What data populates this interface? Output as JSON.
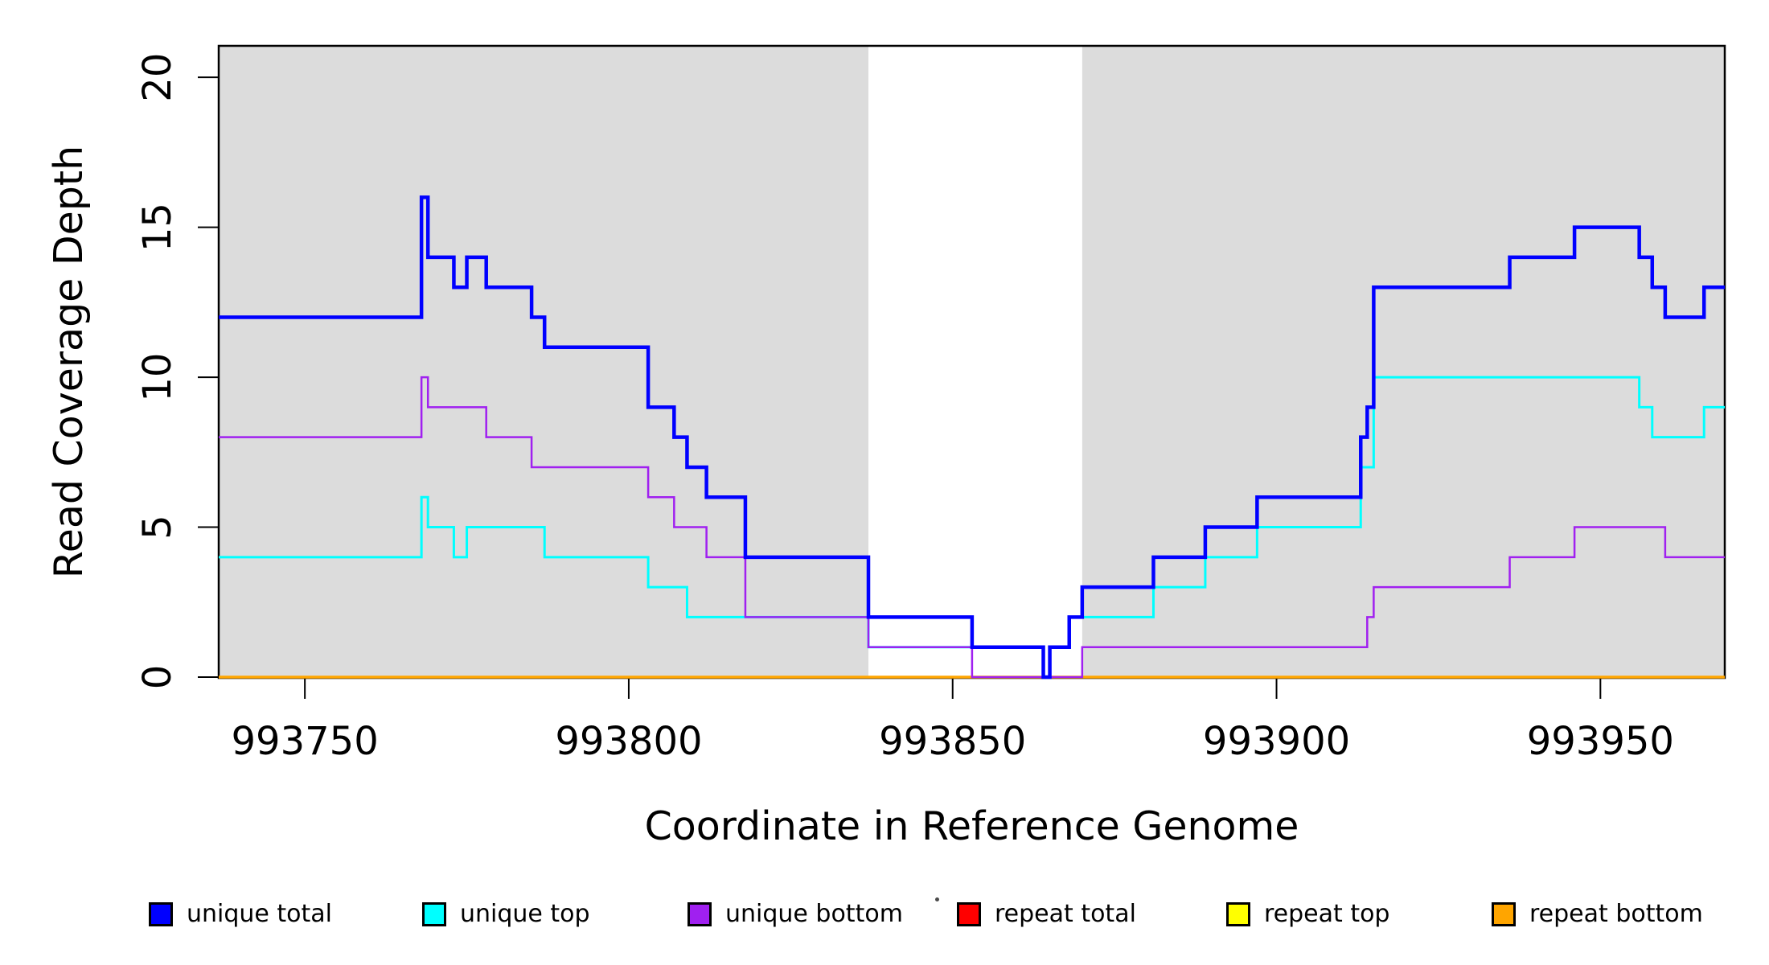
{
  "chart_data": {
    "type": "line",
    "subtype": "step-after-coverage-plot",
    "title": "",
    "xlabel": "Coordinate in Reference Genome",
    "ylabel": "Read Coverage Depth",
    "x_ticks": [
      993750,
      993800,
      993850,
      993900,
      993950
    ],
    "y_ticks": [
      0,
      5,
      10,
      15,
      20
    ],
    "x_range": [
      993736.7,
      993969.2
    ],
    "y_range": [
      0,
      21.05
    ],
    "grid": false,
    "legend_position": "bottom",
    "plot_bg": "#ffffff",
    "band_color": "#dcdcdc",
    "axis_color": "#000000",
    "shaded_regions": [
      {
        "name": "unique-region-left",
        "from": 993736.7,
        "to": 993837
      },
      {
        "name": "unique-region-right",
        "from": 993870,
        "to": 993969.2
      }
    ],
    "series": [
      {
        "name": "repeat total",
        "color": "#ff0000",
        "points": [
          [
            993737,
            0
          ]
        ]
      },
      {
        "name": "repeat top",
        "color": "#ffff00",
        "points": [
          [
            993737,
            0
          ]
        ]
      },
      {
        "name": "repeat bottom",
        "color": "#ffa500",
        "points": [
          [
            993737,
            0
          ]
        ]
      },
      {
        "name": "unique top",
        "color": "#00ffff",
        "points": [
          [
            993737,
            4
          ],
          [
            993768,
            6
          ],
          [
            993769,
            5
          ],
          [
            993773,
            4
          ],
          [
            993775,
            5
          ],
          [
            993787,
            4
          ],
          [
            993803,
            3
          ],
          [
            993809,
            2
          ],
          [
            993837,
            1
          ],
          [
            993864,
            0
          ],
          [
            993865,
            1
          ],
          [
            993868,
            2
          ],
          [
            993881,
            3
          ],
          [
            993889,
            4
          ],
          [
            993897,
            5
          ],
          [
            993913,
            7
          ],
          [
            993915,
            10
          ],
          [
            993956,
            9
          ],
          [
            993958,
            8
          ],
          [
            993966,
            9
          ]
        ]
      },
      {
        "name": "unique bottom",
        "color": "#a020f0",
        "points": [
          [
            993737,
            8
          ],
          [
            993768,
            10
          ],
          [
            993769,
            9
          ],
          [
            993778,
            8
          ],
          [
            993785,
            7
          ],
          [
            993803,
            6
          ],
          [
            993807,
            5
          ],
          [
            993812,
            4
          ],
          [
            993818,
            2
          ],
          [
            993837,
            1
          ],
          [
            993853,
            0
          ],
          [
            993870,
            1
          ],
          [
            993914,
            2
          ],
          [
            993915,
            3
          ],
          [
            993936,
            4
          ],
          [
            993946,
            5
          ],
          [
            993960,
            4
          ]
        ]
      },
      {
        "name": "unique total",
        "color": "#0000ff",
        "points": [
          [
            993737,
            12
          ],
          [
            993768,
            16
          ],
          [
            993769,
            14
          ],
          [
            993773,
            13
          ],
          [
            993775,
            14
          ],
          [
            993778,
            13
          ],
          [
            993785,
            12
          ],
          [
            993787,
            11
          ],
          [
            993803,
            9
          ],
          [
            993807,
            8
          ],
          [
            993809,
            7
          ],
          [
            993812,
            6
          ],
          [
            993818,
            4
          ],
          [
            993837,
            2
          ],
          [
            993853,
            1
          ],
          [
            993864,
            0
          ],
          [
            993865,
            1
          ],
          [
            993868,
            2
          ],
          [
            993870,
            3
          ],
          [
            993881,
            4
          ],
          [
            993889,
            5
          ],
          [
            993897,
            6
          ],
          [
            993913,
            8
          ],
          [
            993914,
            9
          ],
          [
            993915,
            13
          ],
          [
            993936,
            14
          ],
          [
            993946,
            15
          ],
          [
            993956,
            14
          ],
          [
            993958,
            13
          ],
          [
            993960,
            12
          ],
          [
            993966,
            13
          ]
        ]
      }
    ],
    "legend": [
      {
        "label": "unique total",
        "color": "#0000ff"
      },
      {
        "label": "unique top",
        "color": "#00ffff"
      },
      {
        "label": "unique bottom",
        "color": "#a020f0"
      },
      {
        "label": "repeat total",
        "color": "#ff0000"
      },
      {
        "label": "repeat top",
        "color": "#ffff00"
      },
      {
        "label": "repeat bottom",
        "color": "#ffa500"
      }
    ]
  }
}
